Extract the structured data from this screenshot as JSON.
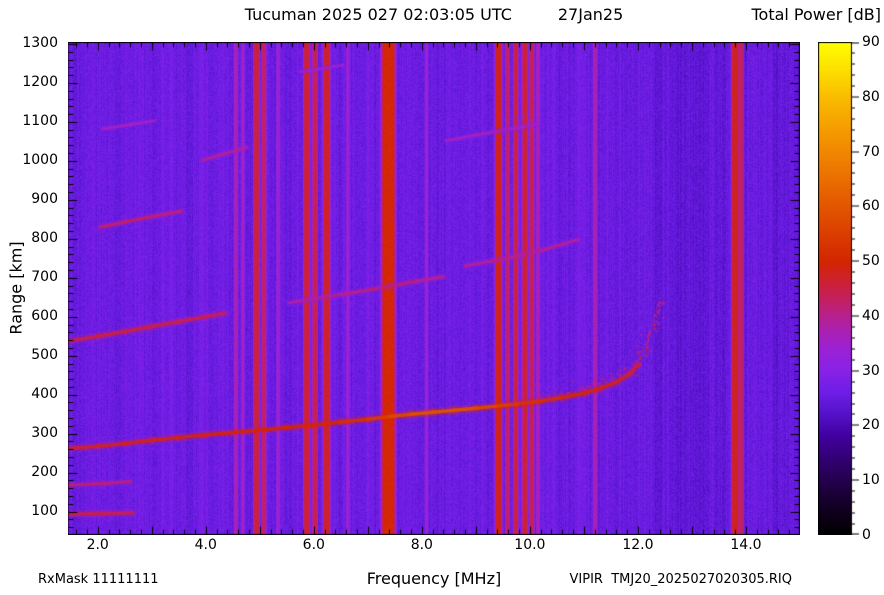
{
  "header": {
    "title": "Tucuman 2025 027 02:03:05 UTC",
    "date": "27Jan25",
    "colorbar_title": "Total Power [dB]"
  },
  "footer": {
    "rxmask": "RxMask 11111111",
    "file": "VIPIR  TMJ20_2025027020305.RIQ"
  },
  "chart_data": {
    "type": "heatmap",
    "title": "Tucuman 2025 027 02:03:05 UTC   27Jan25",
    "xlabel": "Frequency [MHz]",
    "ylabel": "Range [km]",
    "colorbar_label": "Total Power [dB]",
    "xlim": [
      1.45,
      15.0
    ],
    "ylim": [
      40,
      1305
    ],
    "xticks": [
      2,
      4,
      6,
      8,
      10,
      12,
      14
    ],
    "xtick_labels": [
      "2.0",
      "4.0",
      "6.0",
      "8.0",
      "10.0",
      "12.0",
      "14.0"
    ],
    "yticks": [
      100,
      200,
      300,
      400,
      500,
      600,
      700,
      800,
      900,
      1000,
      1100,
      1200,
      1300
    ],
    "colorbar_range": [
      0,
      90
    ],
    "colorbar_ticks": [
      0,
      10,
      20,
      30,
      40,
      50,
      60,
      70,
      80,
      90
    ],
    "colormap": [
      [
        0,
        "#000000"
      ],
      [
        6,
        "#16002a"
      ],
      [
        12,
        "#2b0060"
      ],
      [
        18,
        "#41009e"
      ],
      [
        22,
        "#5412c8"
      ],
      [
        26,
        "#6e1ee6"
      ],
      [
        30,
        "#8822e8"
      ],
      [
        34,
        "#9c22d6"
      ],
      [
        38,
        "#ae20ab"
      ],
      [
        42,
        "#c02070"
      ],
      [
        46,
        "#cc2138"
      ],
      [
        50,
        "#d42600"
      ],
      [
        56,
        "#dd4300"
      ],
      [
        62,
        "#e66000"
      ],
      [
        68,
        "#ef7e00"
      ],
      [
        74,
        "#f59c00"
      ],
      [
        80,
        "#fabd00"
      ],
      [
        85,
        "#fde000"
      ],
      [
        90,
        "#ffff00"
      ]
    ],
    "background_db": 26,
    "noise_db": 2.2,
    "column_noise_db": 1.5,
    "shade_bands": [
      {
        "f1": 12.28,
        "f2": 13.62,
        "d": -1.8
      },
      {
        "f1": 13.98,
        "f2": 15.0,
        "d": -1.2
      },
      {
        "f1": 10.55,
        "f2": 10.8,
        "d": -0.6
      },
      {
        "f1": 2.3,
        "f2": 2.55,
        "d": -0.5
      }
    ],
    "rfi_stripes": [
      {
        "f": 4.55,
        "w": 0.022,
        "db": 38
      },
      {
        "f": 4.68,
        "w": 0.018,
        "db": 36
      },
      {
        "f": 4.93,
        "w": 0.035,
        "db": 46
      },
      {
        "f": 5.07,
        "w": 0.028,
        "db": 43
      },
      {
        "f": 5.33,
        "w": 0.02,
        "db": 35
      },
      {
        "f": 5.86,
        "w": 0.04,
        "db": 46
      },
      {
        "f": 6.01,
        "w": 0.032,
        "db": 44
      },
      {
        "f": 6.23,
        "w": 0.042,
        "db": 47
      },
      {
        "f": 6.62,
        "w": 0.02,
        "db": 34
      },
      {
        "f": 7.37,
        "w": 0.085,
        "db": 50
      },
      {
        "f": 8.08,
        "w": 0.02,
        "db": 34
      },
      {
        "f": 9.41,
        "w": 0.042,
        "db": 48
      },
      {
        "f": 9.58,
        "w": 0.026,
        "db": 43
      },
      {
        "f": 9.73,
        "w": 0.03,
        "db": 45
      },
      {
        "f": 9.9,
        "w": 0.035,
        "db": 46
      },
      {
        "f": 10.03,
        "w": 0.028,
        "db": 44
      },
      {
        "f": 10.14,
        "w": 0.02,
        "db": 38
      },
      {
        "f": 11.2,
        "w": 0.022,
        "db": 38
      },
      {
        "f": 13.79,
        "w": 0.045,
        "db": 48
      },
      {
        "f": 13.9,
        "w": 0.025,
        "db": 44
      }
    ],
    "traces": [
      {
        "name": "e-layer-echo",
        "style": "line",
        "thickness": 9,
        "points": [
          [
            1.45,
            93,
            44
          ],
          [
            2.1,
            95,
            45
          ],
          [
            2.65,
            97,
            43
          ]
        ]
      },
      {
        "name": "e-layer-echo-2",
        "style": "line",
        "thickness": 8,
        "points": [
          [
            1.45,
            168,
            41
          ],
          [
            2.1,
            172,
            42
          ],
          [
            2.6,
            177,
            40
          ]
        ]
      },
      {
        "name": "f-trace-main",
        "style": "line",
        "thickness": 9,
        "points": [
          [
            1.45,
            262,
            46
          ],
          [
            2.0,
            268,
            47
          ],
          [
            2.5,
            275,
            47
          ],
          [
            3.0,
            283,
            48
          ],
          [
            3.5,
            290,
            48
          ],
          [
            4.0,
            297,
            49
          ],
          [
            4.5,
            303,
            49
          ],
          [
            5.0,
            309,
            49
          ],
          [
            5.5,
            316,
            50
          ],
          [
            6.0,
            322,
            50
          ],
          [
            6.5,
            330,
            51
          ],
          [
            7.0,
            337,
            53
          ],
          [
            7.4,
            344,
            56
          ],
          [
            7.8,
            350,
            58
          ],
          [
            8.2,
            355,
            59
          ],
          [
            8.6,
            360,
            59
          ],
          [
            9.0,
            365,
            58
          ],
          [
            9.4,
            371,
            56
          ],
          [
            9.8,
            377,
            54
          ],
          [
            10.2,
            384,
            52
          ],
          [
            10.6,
            393,
            51
          ],
          [
            11.0,
            404,
            50
          ],
          [
            11.3,
            416,
            49
          ],
          [
            11.6,
            432,
            48
          ],
          [
            11.85,
            454,
            47
          ],
          [
            12.0,
            478,
            46
          ]
        ]
      },
      {
        "name": "f-trace-tail",
        "style": "dots",
        "thickness": 7,
        "points": [
          [
            11.9,
            460,
            45
          ],
          [
            12.02,
            488,
            45
          ],
          [
            12.12,
            516,
            44
          ],
          [
            12.2,
            548,
            44
          ],
          [
            12.28,
            584,
            43
          ],
          [
            12.35,
            620,
            42
          ],
          [
            12.42,
            652,
            42
          ]
        ]
      },
      {
        "name": "f-trace-x-branch",
        "style": "dots",
        "thickness": 6,
        "points": [
          [
            9.6,
            388,
            40
          ],
          [
            10.1,
            397,
            40
          ],
          [
            10.6,
            408,
            41
          ],
          [
            11.0,
            421,
            41
          ],
          [
            11.35,
            437,
            40
          ],
          [
            11.65,
            458,
            40
          ],
          [
            11.9,
            482,
            39
          ],
          [
            12.05,
            510,
            39
          ],
          [
            12.2,
            555,
            38
          ],
          [
            12.32,
            600,
            38
          ],
          [
            12.4,
            638,
            37
          ]
        ]
      },
      {
        "name": "second-hop-a",
        "style": "line",
        "thickness": 9,
        "points": [
          [
            1.45,
            538,
            44
          ],
          [
            2.0,
            550,
            45
          ],
          [
            2.5,
            562,
            45
          ],
          [
            3.0,
            575,
            45
          ],
          [
            3.5,
            588,
            44
          ],
          [
            4.0,
            600,
            44
          ],
          [
            4.35,
            609,
            43
          ]
        ]
      },
      {
        "name": "second-hop-b",
        "style": "line",
        "thickness": 8,
        "points": [
          [
            5.55,
            636,
            38
          ],
          [
            6.0,
            646,
            39
          ],
          [
            6.5,
            657,
            40
          ],
          [
            7.0,
            668,
            41
          ],
          [
            7.45,
            680,
            42
          ],
          [
            7.9,
            691,
            41
          ],
          [
            8.4,
            703,
            39
          ]
        ]
      },
      {
        "name": "second-hop-c",
        "style": "line",
        "thickness": 8,
        "points": [
          [
            8.8,
            730,
            38
          ],
          [
            9.3,
            743,
            40
          ],
          [
            9.8,
            757,
            41
          ],
          [
            10.2,
            770,
            40
          ],
          [
            10.6,
            786,
            39
          ],
          [
            10.9,
            798,
            38
          ]
        ]
      },
      {
        "name": "third-hop-a",
        "style": "line",
        "thickness": 8,
        "points": [
          [
            2.05,
            830,
            41
          ],
          [
            2.5,
            843,
            43
          ],
          [
            3.0,
            857,
            42
          ],
          [
            3.55,
            871,
            40
          ]
        ]
      },
      {
        "name": "third-hop-b",
        "style": "line",
        "thickness": 8,
        "points": [
          [
            3.95,
            1002,
            38
          ],
          [
            4.35,
            1018,
            40
          ],
          [
            4.75,
            1035,
            38
          ]
        ]
      },
      {
        "name": "multi-hop-top-left",
        "style": "line",
        "thickness": 7,
        "points": [
          [
            2.1,
            1082,
            35
          ],
          [
            2.6,
            1093,
            37
          ],
          [
            3.05,
            1103,
            35
          ]
        ]
      },
      {
        "name": "multi-hop-top-mid",
        "style": "line",
        "thickness": 7,
        "points": [
          [
            8.45,
            1052,
            35
          ],
          [
            9.0,
            1066,
            37
          ],
          [
            9.6,
            1081,
            37
          ],
          [
            10.1,
            1093,
            35
          ]
        ]
      },
      {
        "name": "multi-hop-top",
        "style": "line",
        "thickness": 6,
        "points": [
          [
            5.75,
            1228,
            34
          ],
          [
            6.15,
            1237,
            35
          ],
          [
            6.55,
            1246,
            34
          ]
        ]
      }
    ]
  }
}
